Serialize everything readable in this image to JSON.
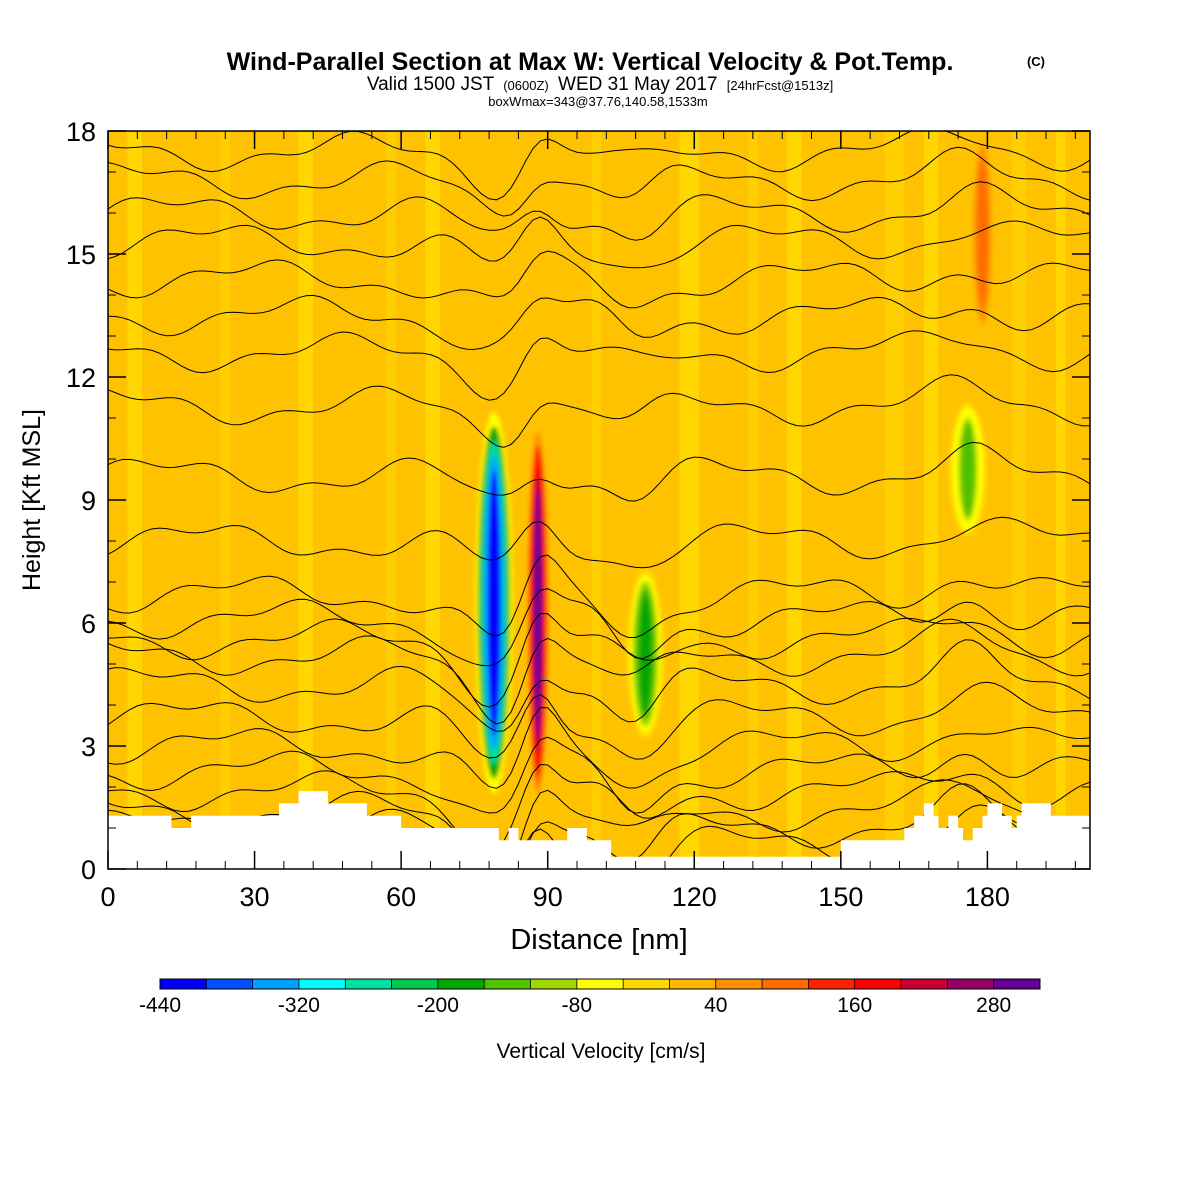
{
  "header": {
    "title": "Wind-Parallel Section at Max W: Vertical Velocity & Pot.Temp.",
    "copyright": "(C)",
    "valid_prefix": "Valid 1500 JST",
    "valid_utc": "(0600Z)",
    "valid_date": "WED 31 May 2017",
    "forecast": "[24hrFcst@1513z]",
    "box_info": "boxWmax=343@37.76,140.58,1533m"
  },
  "chart_data": {
    "type": "heatmap",
    "xlabel": "Distance [nm]",
    "ylabel": "Height [Kft MSL]",
    "xlim": [
      0,
      201
    ],
    "ylim": [
      0,
      18
    ],
    "x_ticks": [
      0,
      30,
      60,
      90,
      120,
      150,
      180
    ],
    "y_ticks": [
      0,
      3,
      6,
      9,
      12,
      15,
      18
    ],
    "background_value_range": "0 to 40 cm/s",
    "colorbar": {
      "label": "Vertical Velocity [cm/s]",
      "tick_labels": [
        "-440",
        "-320",
        "-200",
        "-80",
        "40",
        "160",
        "280"
      ],
      "colors": [
        "#0000ff",
        "#0050ff",
        "#00a0ff",
        "#00ffff",
        "#00e0a0",
        "#00c850",
        "#00a800",
        "#50c000",
        "#a0d800",
        "#ffff00",
        "#ffd800",
        "#ffb400",
        "#ff9000",
        "#ff6c00",
        "#ff2000",
        "#ff0000",
        "#c80032",
        "#960064",
        "#640096"
      ]
    },
    "w_features": [
      {
        "x": 79,
        "y_bottom": 1.5,
        "y_top": 11.5,
        "value_min": -440,
        "sign": "downdraft"
      },
      {
        "x": 88,
        "y_bottom": 1.5,
        "y_top": 11.0,
        "value_max": 280,
        "sign": "updraft"
      },
      {
        "x": 110,
        "y_bottom": 3.0,
        "y_top": 7.5,
        "value_min": -200,
        "sign": "downdraft"
      },
      {
        "x": 176,
        "y_bottom": 8.0,
        "y_top": 11.5,
        "value_min": -140,
        "sign": "downdraft"
      },
      {
        "x": 179,
        "y_bottom": 13.0,
        "y_top": 18.0,
        "value_max": 100,
        "sign": "updraft"
      }
    ],
    "terrain_kft": [
      [
        0,
        1.3
      ],
      [
        13,
        1.3
      ],
      [
        13,
        1.0
      ],
      [
        17,
        1.0
      ],
      [
        17,
        1.3
      ],
      [
        35,
        1.3
      ],
      [
        35,
        1.6
      ],
      [
        39,
        1.6
      ],
      [
        39,
        1.9
      ],
      [
        45,
        1.9
      ],
      [
        45,
        1.6
      ],
      [
        53,
        1.6
      ],
      [
        53,
        1.3
      ],
      [
        60,
        1.3
      ],
      [
        60,
        1.0
      ],
      [
        80,
        1.0
      ],
      [
        80,
        0.7
      ],
      [
        82,
        0.7
      ],
      [
        82,
        1.0
      ],
      [
        84,
        1.0
      ],
      [
        84,
        0.7
      ],
      [
        94,
        0.7
      ],
      [
        94,
        1.0
      ],
      [
        98,
        1.0
      ],
      [
        98,
        0.7
      ],
      [
        103,
        0.7
      ],
      [
        103,
        0.3
      ],
      [
        150,
        0.3
      ],
      [
        150,
        0.7
      ],
      [
        163,
        0.7
      ],
      [
        163,
        1.0
      ],
      [
        165,
        1.0
      ],
      [
        165,
        1.3
      ],
      [
        167,
        1.3
      ],
      [
        167,
        1.6
      ],
      [
        169,
        1.6
      ],
      [
        169,
        1.3
      ],
      [
        170,
        1.3
      ],
      [
        170,
        1.0
      ],
      [
        172,
        1.0
      ],
      [
        172,
        1.3
      ],
      [
        174,
        1.3
      ],
      [
        174,
        1.0
      ],
      [
        175,
        1.0
      ],
      [
        175,
        0.7
      ],
      [
        177,
        0.7
      ],
      [
        177,
        1.0
      ],
      [
        179,
        1.0
      ],
      [
        179,
        1.3
      ],
      [
        180,
        1.3
      ],
      [
        180,
        1.6
      ],
      [
        183,
        1.6
      ],
      [
        183,
        1.3
      ],
      [
        185,
        1.3
      ],
      [
        185,
        1.0
      ],
      [
        186,
        1.0
      ],
      [
        186,
        1.3
      ],
      [
        187,
        1.3
      ],
      [
        187,
        1.6
      ],
      [
        193,
        1.6
      ],
      [
        193,
        1.3
      ],
      [
        201,
        1.3
      ]
    ],
    "isentrope_base_heights_kft": [
      0.6,
      1.0,
      1.4,
      1.9,
      2.4,
      3.0,
      3.7,
      4.5,
      5.2,
      5.6,
      6.1,
      6.7,
      8.0,
      9.6,
      11.3,
      12.6,
      13.5,
      14.4,
      15.3,
      16.0,
      16.8,
      17.5
    ]
  }
}
